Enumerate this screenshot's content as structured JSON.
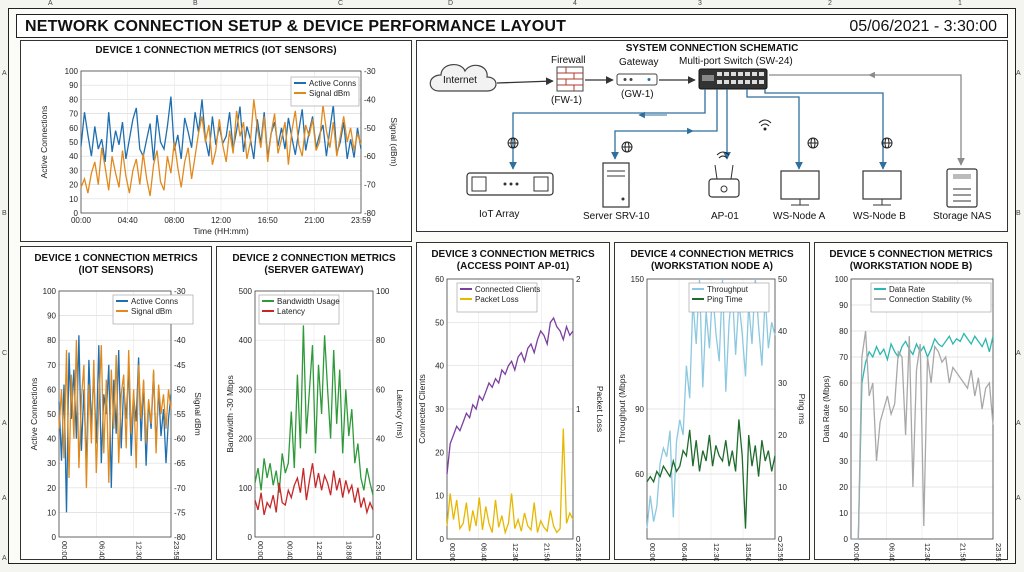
{
  "header": {
    "title": "NETWORK CONNECTION SETUP & DEVICE PERFORMANCE LAYOUT",
    "timestamp": "05/06/2021 - 3:30:00"
  },
  "frame": {
    "top_marks": [
      "A",
      "B",
      "C",
      "D",
      "4",
      "3",
      "2",
      "1"
    ],
    "left_marks": [
      "A",
      "B",
      "C",
      "A",
      "A",
      "A"
    ],
    "right_marks": [
      "A",
      "B",
      "A",
      "A",
      "A"
    ]
  },
  "schematic": {
    "title": "SYSTEM CONNECTION SCHEMATIC",
    "nodes": {
      "internet": "Internet",
      "firewall": "Firewall",
      "firewall_id": "(FW-1)",
      "gateway": "Gateway",
      "gateway_id": "(GW-1)",
      "switch": "Multi-port Switch (SW-24)",
      "iot": "IoT Array",
      "server": "Server SRV-10",
      "ap": "AP-01",
      "wsa": "WS-Node A",
      "wsb": "WS-Node B",
      "nas": "Storage NAS"
    },
    "colors": {
      "link": "#2e6f9e",
      "nas_link": "#8a8a8a"
    }
  },
  "chart_data": [
    {
      "id": "c0",
      "type": "line",
      "title": "DEVICE 1 CONNECTION METRICS (IOT SENSORS)",
      "xlabel": "Time (HH:mm)",
      "ylabel": "Active Connections",
      "ylabel_right": "Signal (dBm)",
      "xticks": [
        "00:00",
        "04:40",
        "08:00",
        "12:00",
        "16:50",
        "21:00",
        "23:59"
      ],
      "ylim": [
        0,
        100
      ],
      "yticks": [
        0,
        10,
        20,
        30,
        40,
        50,
        60,
        70,
        80,
        90,
        100
      ],
      "ylim_right": [
        -80,
        -30
      ],
      "yticks_right": [
        -80,
        -70,
        -60,
        -50,
        -40,
        -30
      ],
      "legend": "top-right",
      "series": [
        {
          "name": "Active Conns",
          "color": "#1f6fb0",
          "axis": "left",
          "values": [
            47,
            71,
            55,
            40,
            61,
            45,
            52,
            36,
            71,
            43,
            58,
            48,
            64,
            38,
            52,
            66,
            74,
            45,
            40,
            52,
            63,
            37,
            69,
            50,
            45,
            61,
            82,
            44,
            55,
            38,
            67,
            57,
            46,
            71,
            57,
            80,
            52,
            40,
            68,
            48,
            61,
            49,
            54,
            71,
            45,
            58,
            75,
            43,
            61,
            52,
            38,
            66,
            49,
            71,
            39,
            56,
            64,
            47,
            60,
            45,
            67,
            53,
            41,
            58,
            73,
            44,
            57,
            68,
            46,
            55,
            62,
            40,
            59,
            76,
            42,
            50,
            64,
            38,
            52,
            39,
            60,
            45
          ]
        },
        {
          "name": "Signal dBm",
          "color": "#e08a1e",
          "axis": "right",
          "values": [
            -71,
            -68,
            -73,
            -66,
            -62,
            -70,
            -57,
            -64,
            -72,
            -60,
            -66,
            -71,
            -58,
            -67,
            -73,
            -65,
            -61,
            -70,
            -59,
            -68,
            -74,
            -63,
            -58,
            -69,
            -72,
            -60,
            -66,
            -55,
            -64,
            -71,
            -62,
            -57,
            -68,
            -60,
            -52,
            -46,
            -55,
            -49,
            -63,
            -58,
            -47,
            -56,
            -62,
            -51,
            -59,
            -44,
            -53,
            -48,
            -61,
            -55,
            -40,
            -50,
            -57,
            -46,
            -62,
            -52,
            -45,
            -59,
            -54,
            -48,
            -63,
            -51,
            -44,
            -56,
            -60,
            -49,
            -53,
            -47,
            -58,
            -55,
            -42,
            -51,
            -57,
            -48,
            -60,
            -53,
            -46,
            -55,
            -50,
            -58,
            -52,
            -56
          ]
        }
      ]
    },
    {
      "id": "c1",
      "type": "line",
      "title": "DEVICE 1 CONNECTION METRICS\n(IOT SENSORS)",
      "xlabel": "Time (HH:mm)",
      "ylabel": "Active Connections",
      "ylabel_right": "Signal dBm",
      "xticks": [
        "00:00",
        "06:40",
        "12:30",
        "23:59"
      ],
      "ylim": [
        0,
        100
      ],
      "yticks": [
        0,
        10,
        20,
        30,
        40,
        50,
        60,
        70,
        80,
        90,
        100
      ],
      "ylim_right": [
        -80,
        -30
      ],
      "yticks_right": [
        -80,
        -75,
        -70,
        -65,
        -60,
        -55,
        -50,
        -45,
        -40,
        -35,
        -30
      ],
      "legend": "top-right",
      "series": [
        {
          "name": "Active Conns",
          "color": "#1f6fb0",
          "axis": "left",
          "values": [
            55,
            31,
            62,
            10,
            75,
            48,
            68,
            40,
            82,
            35,
            60,
            28,
            72,
            45,
            66,
            38,
            78,
            30,
            58,
            50,
            70,
            20,
            64,
            42,
            76,
            36,
            61,
            48,
            69,
            33,
            57,
            47,
            73,
            39,
            63,
            29,
            55,
            44,
            67,
            37,
            60,
            41,
            52,
            30,
            48,
            58
          ]
        },
        {
          "name": "Signal dBm",
          "color": "#e08a1e",
          "axis": "right",
          "values": [
            -58,
            -50,
            -64,
            -42,
            -68,
            -47,
            -60,
            -40,
            -66,
            -52,
            -45,
            -70,
            -49,
            -61,
            -44,
            -67,
            -53,
            -41,
            -63,
            -48,
            -69,
            -46,
            -58,
            -43,
            -65,
            -51,
            -47,
            -62,
            -42,
            -59,
            -50,
            -66,
            -45,
            -56,
            -48,
            -61,
            -52,
            -57,
            -46,
            -63,
            -49,
            -55,
            -51,
            -58,
            -50,
            -54
          ]
        }
      ]
    },
    {
      "id": "c2",
      "type": "line",
      "title": "DEVICE 2 CONNECTION METRICS\n(SERVER GATEWAY)",
      "xlabel": "Time (HH:mm)",
      "ylabel": "Bandwidth -30 Mbps",
      "ylabel_right": "Latency (ms)",
      "xticks": [
        "00:00",
        "00:40",
        "12:30",
        "18:89",
        "23:59"
      ],
      "ylim": [
        0,
        500
      ],
      "yticks": [
        0,
        100,
        200,
        300,
        400,
        500
      ],
      "ylim_right": [
        0,
        100
      ],
      "yticks_right": [
        0,
        20,
        40,
        60,
        80,
        100
      ],
      "legend": "top-left",
      "series": [
        {
          "name": "Bandwidth Usage",
          "color": "#2f9a3a",
          "axis": "left",
          "values": [
            110,
            140,
            95,
            160,
            120,
            150,
            105,
            135,
            90,
            170,
            130,
            150,
            255,
            140,
            330,
            180,
            430,
            210,
            300,
            390,
            170,
            350,
            250,
            410,
            300,
            200,
            380,
            230,
            340,
            170,
            300,
            205,
            260,
            150,
            190,
            120,
            95,
            140,
            110,
            85
          ]
        },
        {
          "name": "Latency",
          "color": "#c62828",
          "axis": "right",
          "values": [
            15,
            11,
            18,
            9,
            14,
            12,
            17,
            10,
            22,
            14,
            13,
            19,
            16,
            21,
            24,
            18,
            28,
            15,
            23,
            30,
            20,
            26,
            19,
            25,
            22,
            17,
            27,
            19,
            24,
            16,
            23,
            18,
            21,
            14,
            20,
            12,
            16,
            10,
            14,
            11
          ]
        }
      ]
    },
    {
      "id": "c3",
      "type": "line",
      "title": "DEVICE 3 CONNECTION METRICS\n(ACCESS POINT AP-01)",
      "xlabel": "Time (HH:mm)",
      "ylabel": "Connected Clients",
      "ylabel_right": "Packet Loss",
      "xticks": [
        "00:00",
        "06:40",
        "12:30",
        "21:59",
        "23:59"
      ],
      "ylim": [
        0,
        60
      ],
      "yticks": [
        0,
        10,
        20,
        30,
        40,
        50,
        60
      ],
      "ylim_right": [
        0,
        2
      ],
      "yticks_right": [
        0,
        1,
        2
      ],
      "legend": "top-left",
      "series": [
        {
          "name": "Connected Clients",
          "color": "#7b3fa0",
          "axis": "left",
          "values": [
            15,
            22,
            24,
            26,
            25,
            27,
            29,
            28,
            31,
            30,
            33,
            32,
            34,
            36,
            35,
            37,
            36,
            39,
            38,
            40,
            41,
            39,
            42,
            43,
            41,
            44,
            45,
            43,
            46,
            48,
            47,
            45,
            50,
            51,
            49,
            48,
            46,
            49,
            47,
            48
          ]
        },
        {
          "name": "Packet Loss",
          "color": "#e6b800",
          "axis": "right",
          "values": [
            0.1,
            0.35,
            0.15,
            0.3,
            0.08,
            0.12,
            0.28,
            0.06,
            0.22,
            0.1,
            0.32,
            0.07,
            0.25,
            0.12,
            0.05,
            0.3,
            0.09,
            0.18,
            0.05,
            0.12,
            0.35,
            0.08,
            0.15,
            0.06,
            0.2,
            0.1,
            0.07,
            0.28,
            0.05,
            0.14,
            0.09,
            0.06,
            0.22,
            0.1,
            0.05,
            0.08,
            0.85,
            0.12,
            0.2,
            0.15
          ]
        }
      ]
    },
    {
      "id": "c4",
      "type": "line",
      "title": "DEVICE 4 CONNECTION METRICS\n(WORKSTATION NODE A)",
      "xlabel": "Time (HH:mm)",
      "ylabel": "Throughput (Mbps",
      "ylabel_right": "Ping ms",
      "xticks": [
        "00:00",
        "06:40",
        "12:30",
        "18:50",
        "23:59"
      ],
      "ylim": [
        30,
        150
      ],
      "yticks": [
        60,
        90,
        150
      ],
      "ylim_right": [
        0,
        50
      ],
      "yticks_right": [
        0,
        10,
        20,
        30,
        40,
        50
      ],
      "legend": "top-right",
      "series": [
        {
          "name": "Throughput",
          "color": "#8cc8e0",
          "axis": "left",
          "values": [
            35,
            50,
            38,
            45,
            65,
            72,
            68,
            80,
            40,
            75,
            85,
            78,
            110,
            95,
            140,
            120,
            150,
            100,
            135,
            118,
            145,
            125,
            112,
            150,
            98,
            130,
            145,
            115,
            140,
            125,
            105,
            138,
            120,
            150,
            128,
            110,
            142,
            118,
            130,
            124
          ]
        },
        {
          "name": "Ping Time",
          "color": "#1e6b2c",
          "axis": "right",
          "values": [
            11,
            12,
            11,
            13,
            12,
            14,
            13,
            12,
            15,
            13,
            14,
            17,
            16,
            21,
            14,
            19,
            13,
            17,
            15,
            20,
            14,
            18,
            16,
            15,
            19,
            14,
            17,
            13,
            23,
            16,
            2,
            20,
            14,
            18,
            12,
            19,
            15,
            17,
            13,
            16
          ]
        }
      ]
    },
    {
      "id": "c5",
      "type": "line",
      "title": "DEVICE 5 CONNECTION METRICS\n(WORKSTATION NODE B)",
      "xlabel": "Time (HH:mm)",
      "ylabel": "Data Rate (Mbps)",
      "ylabel_right": "",
      "xticks": [
        "00:00",
        "06:40",
        "12:30",
        "21:59",
        "23:59"
      ],
      "ylim": [
        0,
        100
      ],
      "yticks": [
        0,
        10,
        20,
        30,
        40,
        50,
        60,
        70,
        80,
        90,
        100
      ],
      "legend": "top-right",
      "series": [
        {
          "name": "Data Rate",
          "color": "#2ab8b0",
          "axis": "left",
          "values": [
            0,
            0,
            0,
            60,
            68,
            72,
            70,
            74,
            71,
            73,
            69,
            75,
            72,
            70,
            74,
            76,
            73,
            71,
            75,
            72,
            74,
            70,
            73,
            77,
            75,
            74,
            76,
            78,
            75,
            77,
            76,
            79,
            77,
            75,
            78,
            76,
            74,
            77,
            72,
            78
          ]
        },
        {
          "name": "Connection Stability (%",
          "color": "#a8a8a8",
          "axis": "left",
          "values": [
            0,
            0,
            0,
            70,
            80,
            55,
            60,
            30,
            45,
            50,
            55,
            48,
            52,
            72,
            70,
            40,
            78,
            20,
            65,
            75,
            5,
            70,
            60,
            74,
            72,
            68,
            70,
            60,
            66,
            64,
            62,
            60,
            58,
            65,
            55,
            62,
            50,
            58,
            60,
            44
          ]
        }
      ]
    }
  ]
}
